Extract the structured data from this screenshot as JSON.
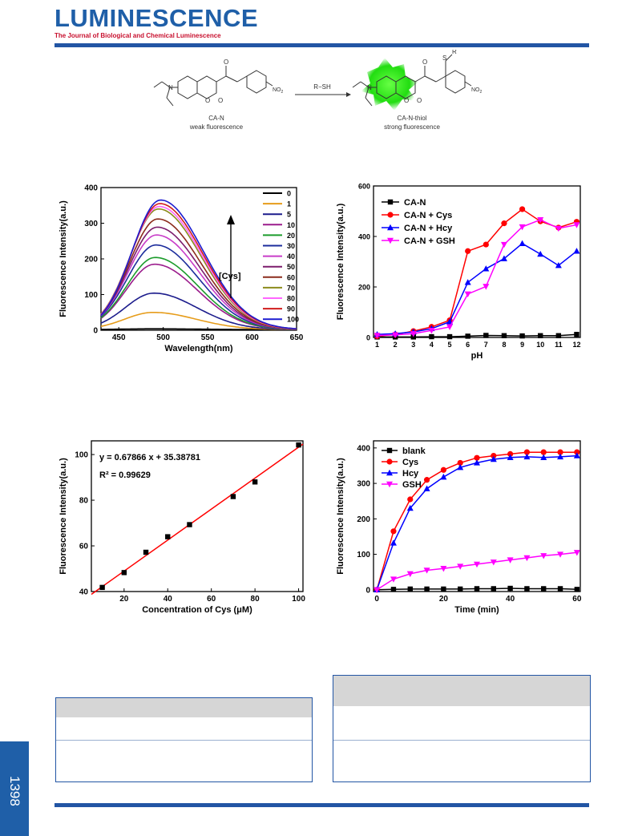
{
  "header": {
    "journal": "LUMINESCENCE",
    "subtitle": "The Journal of Biological and Chemical Luminescence"
  },
  "scheme": {
    "reactant_name": "CA-N",
    "reactant_desc": "weak fluorescence",
    "reagent": "R−SH",
    "product_name": "CA-N-thiol",
    "product_desc": "strong fluorescence",
    "atoms": {
      "n": "N",
      "o": "O",
      "no2": "NO",
      "no2_sub": "2",
      "s": "S",
      "r": "R"
    }
  },
  "page_number": "1398",
  "colors": {
    "accent": "#2255a4",
    "brand": "#1f5fa8",
    "subtitle": "#c8102e"
  },
  "chart_data": [
    {
      "type": "line",
      "xlabel": "Wavelength(nm)",
      "ylabel": "Fluorescence Intensity(a.u.)",
      "xlim": [
        430,
        650
      ],
      "ylim": [
        0,
        400
      ],
      "xticks": [
        450,
        500,
        550,
        600,
        650
      ],
      "yticks": [
        0,
        100,
        200,
        300,
        400
      ],
      "annotation": "[Cys]",
      "peak_shape": {
        "center": [
          488,
          497
        ],
        "width_left": 32,
        "width_right": 48
      },
      "series": [
        {
          "name": "0",
          "peak": 2,
          "color": "#000000"
        },
        {
          "name": "1",
          "peak": 48,
          "color": "#e69c1a"
        },
        {
          "name": "5",
          "peak": 102,
          "color": "#1c1c8c"
        },
        {
          "name": "10",
          "peak": 183,
          "color": "#9b1c8c"
        },
        {
          "name": "20",
          "peak": 202,
          "color": "#1c9c2c"
        },
        {
          "name": "30",
          "peak": 237,
          "color": "#1c2c9c"
        },
        {
          "name": "40",
          "peak": 265,
          "color": "#c83cc8"
        },
        {
          "name": "50",
          "peak": 287,
          "color": "#7c1c6c"
        },
        {
          "name": "60",
          "peak": 310,
          "color": "#8c2c1c"
        },
        {
          "name": "70",
          "peak": 338,
          "color": "#8c8c1c"
        },
        {
          "name": "80",
          "peak": 345,
          "color": "#ff66ff"
        },
        {
          "name": "90",
          "peak": 353,
          "color": "#d01c1c"
        },
        {
          "name": "100",
          "peak": 363,
          "color": "#1c1cd0"
        }
      ]
    },
    {
      "type": "line",
      "xlabel": "pH",
      "ylabel": "Fluorescence Intensity(a.u.)",
      "xlim": [
        0.8,
        12.2
      ],
      "ylim": [
        0,
        600
      ],
      "xticks": [
        1,
        2,
        3,
        4,
        5,
        6,
        7,
        8,
        9,
        10,
        11,
        12
      ],
      "yticks": [
        0,
        200,
        400,
        600
      ],
      "x": [
        1,
        2,
        3,
        4,
        5,
        6,
        7,
        8,
        9,
        10,
        11,
        12
      ],
      "series": [
        {
          "name": "CA-N",
          "color": "#000000",
          "marker": "square",
          "values": [
            2,
            2,
            2,
            3,
            3,
            5,
            8,
            7,
            6,
            7,
            7,
            12
          ]
        },
        {
          "name": "CA-N + Cys",
          "color": "#ff0000",
          "marker": "circle",
          "values": [
            5,
            12,
            25,
            42,
            68,
            342,
            368,
            452,
            508,
            460,
            435,
            458
          ]
        },
        {
          "name": "CA-N + Hcy",
          "color": "#0000ff",
          "marker": "triangle-up",
          "values": [
            12,
            15,
            22,
            35,
            62,
            218,
            272,
            312,
            372,
            330,
            285,
            342
          ]
        },
        {
          "name": "CA-N + GSH",
          "color": "#ff00ff",
          "marker": "triangle-down",
          "values": [
            8,
            10,
            15,
            28,
            42,
            172,
            202,
            368,
            438,
            466,
            432,
            446
          ]
        }
      ]
    },
    {
      "type": "scatter",
      "xlabel": "Concentration of Cys (μM)",
      "ylabel": "Fluorescence Intensity(a.u.)",
      "xlim": [
        5,
        102
      ],
      "ylim": [
        40,
        106
      ],
      "xticks": [
        20,
        40,
        60,
        80,
        100
      ],
      "yticks": [
        40,
        60,
        80,
        100
      ],
      "equation": "y = 0.67866 x + 35.38781",
      "r2": "R² = 0.99629",
      "fit": {
        "slope": 0.67866,
        "intercept": 35.38781
      },
      "x": [
        10,
        20,
        30,
        40,
        50,
        70,
        80,
        100
      ],
      "values": [
        41.8,
        48.3,
        57.2,
        64.0,
        69.3,
        81.6,
        88.0,
        104.2
      ]
    },
    {
      "type": "line",
      "xlabel": "Time (min)",
      "ylabel": "Fluorescence Intensity(a.u.)",
      "xlim": [
        -1,
        61
      ],
      "ylim": [
        -5,
        420
      ],
      "xticks": [
        0,
        20,
        40,
        60
      ],
      "yticks": [
        0,
        100,
        200,
        300,
        400
      ],
      "x": [
        0,
        5,
        10,
        15,
        20,
        25,
        30,
        35,
        40,
        45,
        50,
        55,
        60
      ],
      "series": [
        {
          "name": "blank",
          "color": "#000000",
          "marker": "square",
          "values": [
            0,
            1,
            2,
            2,
            2,
            2,
            3,
            3,
            4,
            3,
            3,
            3,
            1
          ]
        },
        {
          "name": "Cys",
          "color": "#ff0000",
          "marker": "circle",
          "values": [
            0,
            165,
            255,
            310,
            338,
            358,
            372,
            378,
            383,
            388,
            388,
            388,
            388
          ]
        },
        {
          "name": "Hcy",
          "color": "#0000ff",
          "marker": "triangle-up",
          "values": [
            0,
            132,
            230,
            285,
            318,
            345,
            358,
            368,
            373,
            375,
            373,
            375,
            378
          ]
        },
        {
          "name": "GSH",
          "color": "#ff00ff",
          "marker": "triangle-down",
          "values": [
            0,
            30,
            45,
            55,
            60,
            66,
            72,
            78,
            84,
            90,
            96,
            100,
            105
          ]
        }
      ]
    }
  ]
}
